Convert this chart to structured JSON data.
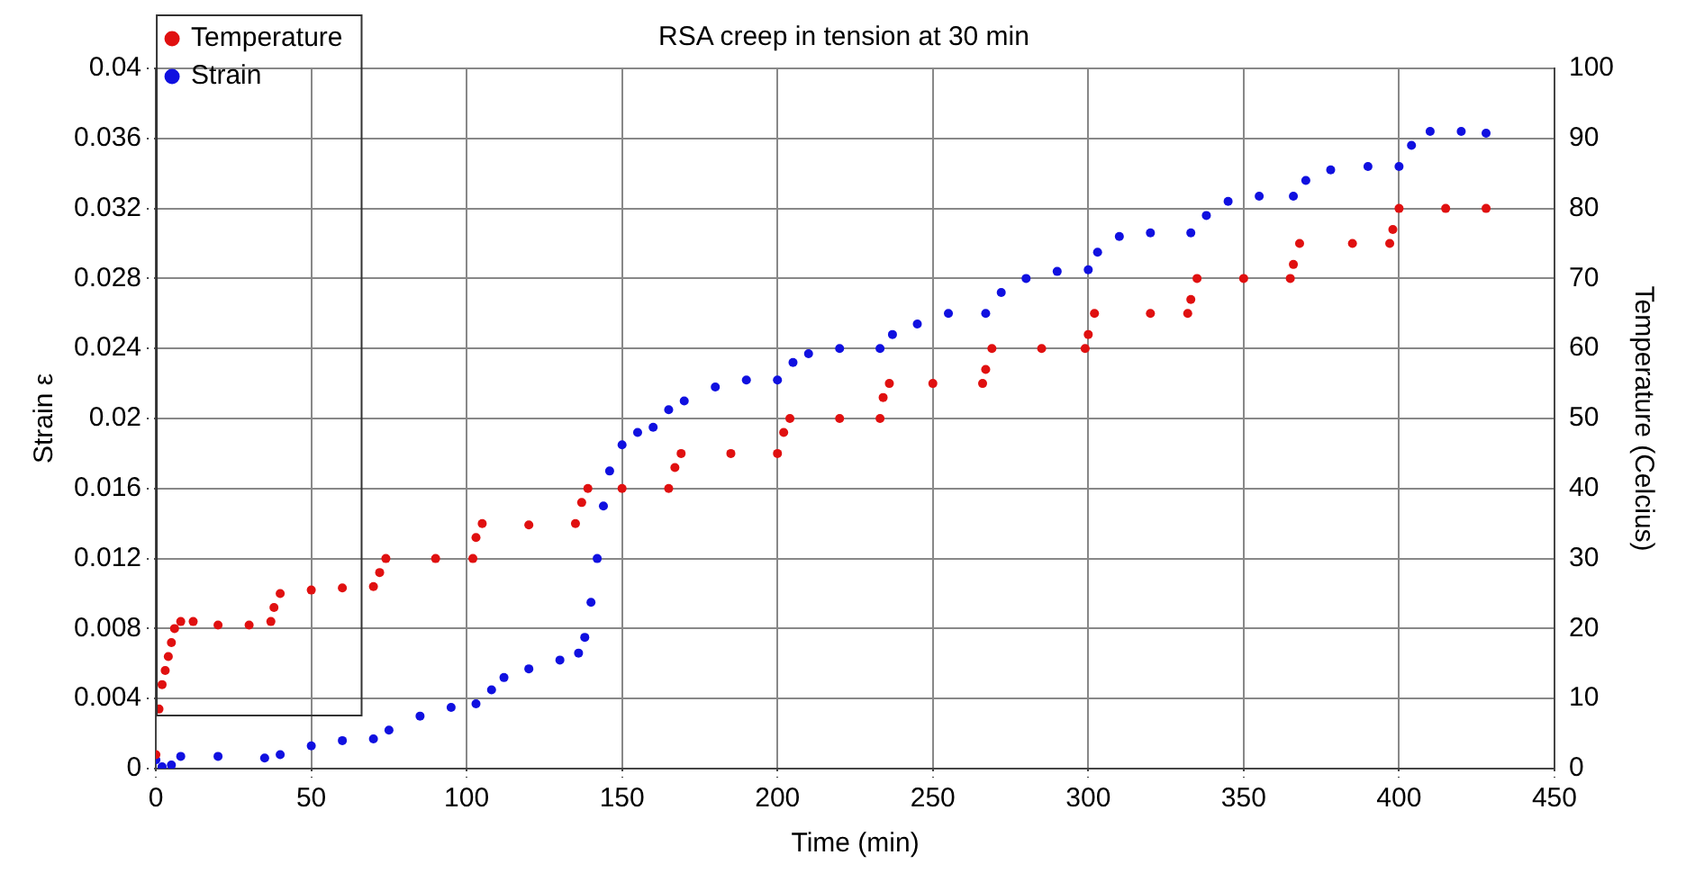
{
  "chart_data": {
    "type": "scatter",
    "title": "RSA creep in tension at 30 min",
    "xlabel": "Time (min)",
    "ylabel": "Strain ε",
    "y2label": "Temperature (Celcius)",
    "xlim": [
      0,
      450
    ],
    "xticks": [
      0,
      50,
      100,
      150,
      200,
      250,
      300,
      350,
      400,
      450
    ],
    "ylim": [
      0,
      0.04
    ],
    "yticks": [
      0,
      0.004,
      0.008,
      0.012,
      0.016,
      0.02,
      0.024,
      0.028,
      0.032,
      0.036,
      0.04
    ],
    "y2lim": [
      0,
      100
    ],
    "y2ticks": [
      0,
      10,
      20,
      30,
      40,
      50,
      60,
      70,
      80,
      90,
      100
    ],
    "grid": true,
    "legend": "top left",
    "marker": "circle",
    "series": [
      {
        "name": "Temperature",
        "color": "#e01010",
        "axis": "y2",
        "x": [
          0,
          1,
          2,
          3,
          4,
          5,
          6,
          8,
          12,
          20,
          30,
          37,
          38,
          40,
          50,
          60,
          70,
          72,
          74,
          90,
          102,
          103,
          105,
          120,
          135,
          137,
          139,
          150,
          165,
          167,
          169,
          185,
          200,
          202,
          204,
          220,
          233,
          234,
          236,
          250,
          266,
          267,
          269,
          285,
          299,
          300,
          302,
          320,
          332,
          333,
          335,
          350,
          365,
          366,
          368,
          385,
          397,
          398,
          400,
          415,
          428
        ],
        "values": [
          2,
          8.5,
          12,
          14,
          16,
          18,
          20,
          21,
          21,
          20.5,
          20.5,
          21,
          23,
          25,
          25.5,
          25.8,
          26,
          28,
          30,
          30,
          30,
          33,
          35,
          34.8,
          35,
          38,
          40,
          40,
          40,
          43,
          45,
          45,
          45,
          48,
          50,
          50,
          50,
          53,
          55,
          55,
          55,
          57,
          60,
          60,
          60,
          62,
          65,
          65,
          65,
          67,
          70,
          70,
          70,
          72,
          75,
          75,
          75,
          77,
          80,
          80,
          80
        ]
      },
      {
        "name": "Strain",
        "color": "#1010e0",
        "x": [
          0,
          2,
          5,
          8,
          20,
          35,
          40,
          50,
          60,
          70,
          75,
          85,
          95,
          103,
          108,
          112,
          120,
          130,
          136,
          138,
          140,
          142,
          144,
          146,
          150,
          155,
          160,
          165,
          170,
          180,
          190,
          200,
          205,
          210,
          220,
          233,
          237,
          245,
          255,
          267,
          272,
          280,
          290,
          300,
          303,
          310,
          320,
          333,
          338,
          345,
          355,
          366,
          370,
          378,
          390,
          400,
          404,
          410,
          420,
          428
        ],
        "values": [
          0.0005,
          0.0001,
          0.0002,
          0.0007,
          0.0007,
          0.0006,
          0.0008,
          0.0013,
          0.0016,
          0.0017,
          0.0022,
          0.003,
          0.0035,
          0.0037,
          0.0045,
          0.0052,
          0.0057,
          0.0062,
          0.0066,
          0.0075,
          0.0095,
          0.012,
          0.015,
          0.017,
          0.0185,
          0.0192,
          0.0195,
          0.0205,
          0.021,
          0.0218,
          0.0222,
          0.0222,
          0.0232,
          0.0237,
          0.024,
          0.024,
          0.0248,
          0.0254,
          0.026,
          0.026,
          0.0272,
          0.028,
          0.0284,
          0.0285,
          0.0295,
          0.0304,
          0.0306,
          0.0306,
          0.0316,
          0.0324,
          0.0327,
          0.0327,
          0.0336,
          0.0342,
          0.0344,
          0.0344,
          0.0356,
          0.0364,
          0.0364,
          0.0363
        ]
      }
    ]
  }
}
